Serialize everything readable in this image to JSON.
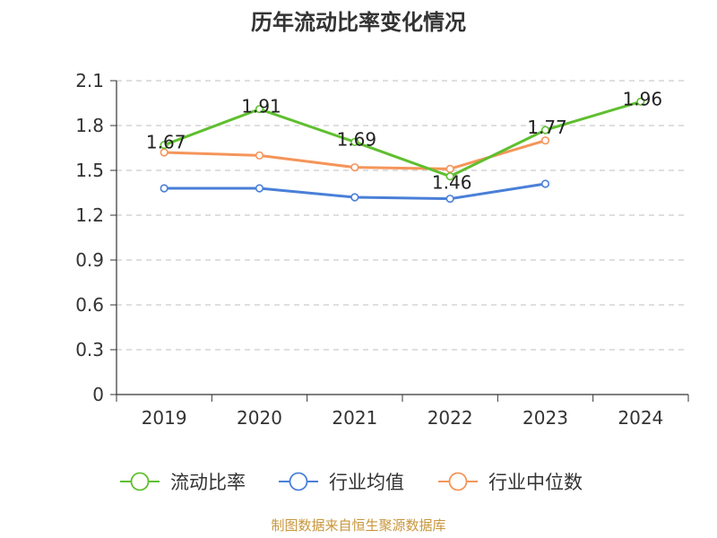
{
  "chart_data": {
    "type": "line",
    "title": "历年流动比率变化情况",
    "categories": [
      "2019",
      "2020",
      "2021",
      "2022",
      "2023",
      "2024"
    ],
    "ylim": [
      0,
      2.1
    ],
    "yticks": [
      "0",
      "0.3",
      "0.6",
      "0.9",
      "1.2",
      "1.5",
      "1.8",
      "2.1"
    ],
    "grid": true,
    "legend_position": "bottom",
    "series": [
      {
        "name": "流动比率",
        "color": "#5fbf2f",
        "values": [
          1.67,
          1.91,
          1.69,
          1.46,
          1.77,
          1.96
        ],
        "labels": [
          "1.67",
          "1.91",
          "1.69",
          "1.46",
          "1.77",
          "1.96"
        ]
      },
      {
        "name": "行业均值",
        "color": "#4a7fd8",
        "values": [
          1.38,
          1.38,
          1.32,
          1.31,
          1.41,
          null
        ]
      },
      {
        "name": "行业中位数",
        "color": "#f5955a",
        "values": [
          1.62,
          1.6,
          1.52,
          1.51,
          1.7,
          null
        ]
      }
    ]
  },
  "source": "制图数据来自恒生聚源数据库"
}
